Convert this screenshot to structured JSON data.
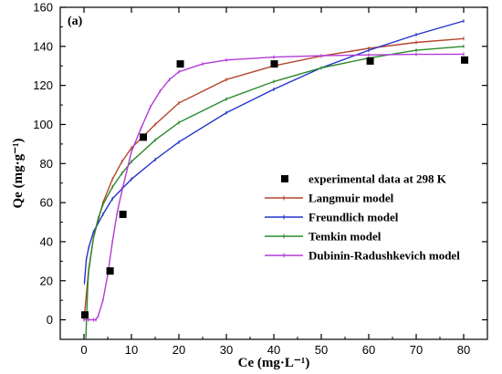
{
  "chart_data": {
    "type": "scatter",
    "panel_label": "(a)",
    "xlabel": "Ce (mg·L⁻¹)",
    "ylabel": "Qe (mg·g⁻¹)",
    "xlim": [
      -5,
      85
    ],
    "ylim": [
      -10,
      160
    ],
    "x_ticks": [
      0,
      10,
      20,
      30,
      40,
      50,
      60,
      70,
      80
    ],
    "y_ticks": [
      0,
      20,
      40,
      60,
      80,
      100,
      120,
      140,
      160
    ],
    "grid": false,
    "legend_position": "right-middle",
    "series": [
      {
        "name": "experimental data at 298 K",
        "kind": "points",
        "marker": "square",
        "color": "#000000",
        "x": [
          0.2,
          5.5,
          8.2,
          12.5,
          20.3,
          40.1,
          60.3,
          80.2
        ],
        "y": [
          2.5,
          25,
          54,
          93.5,
          131,
          131,
          132.5,
          133
        ]
      },
      {
        "name": "Langmuir model",
        "kind": "line",
        "color": "#b5452d",
        "x": [
          0,
          1,
          2,
          4,
          6,
          8,
          10,
          15,
          20,
          30,
          40,
          50,
          60,
          70,
          80
        ],
        "y": [
          0,
          26,
          42,
          60,
          72,
          81,
          88,
          100,
          111,
          123,
          130,
          135,
          139,
          142,
          144
        ]
      },
      {
        "name": "Freundlich model",
        "kind": "line",
        "color": "#2233cc",
        "x": [
          0.1,
          0.5,
          1,
          2,
          4,
          6,
          8,
          10,
          15,
          20,
          30,
          40,
          50,
          60,
          70,
          80
        ],
        "y": [
          19,
          31,
          37,
          45,
          54,
          62,
          67,
          72,
          82,
          91,
          106,
          118,
          129,
          138,
          146,
          153
        ]
      },
      {
        "name": "Temkin model",
        "kind": "line",
        "color": "#2a8a2a",
        "x": [
          0.4,
          0.8,
          1,
          2,
          3,
          4,
          6,
          8,
          10,
          15,
          20,
          30,
          40,
          50,
          60,
          70,
          80
        ],
        "y": [
          -9,
          18,
          25,
          42,
          52,
          59,
          68,
          75,
          81,
          92,
          101,
          113,
          122,
          129,
          134,
          138,
          140
        ]
      },
      {
        "name": "Dubinin-Radushkevich model",
        "kind": "line",
        "color": "#b23cd6",
        "x": [
          0,
          1,
          2,
          2.5,
          3,
          4,
          5,
          6,
          7,
          8,
          9,
          10,
          12,
          14,
          16,
          18,
          20,
          25,
          30,
          40,
          50,
          60,
          70,
          80
        ],
        "y": [
          0,
          0,
          0,
          0,
          2,
          10,
          23,
          40,
          55,
          66,
          76,
          86,
          98,
          109,
          117,
          123,
          127,
          131,
          133,
          134.5,
          135.2,
          135.6,
          135.9,
          136
        ]
      }
    ]
  }
}
